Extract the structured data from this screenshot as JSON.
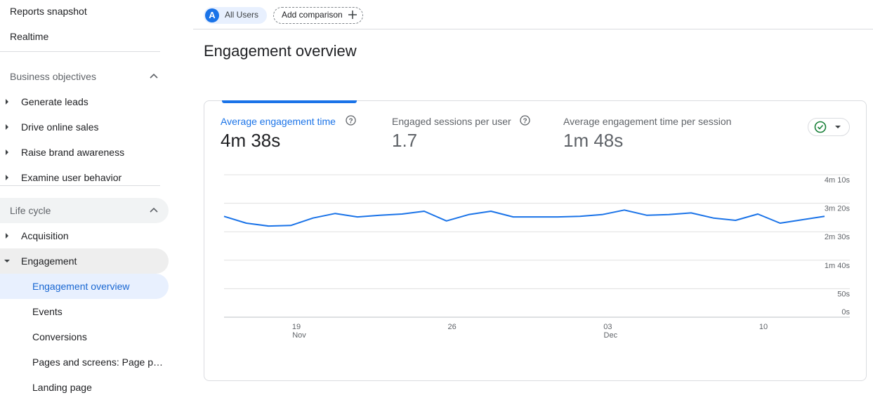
{
  "sidebar": {
    "items": [
      "Reports snapshot",
      "Realtime"
    ],
    "sections": [
      {
        "title": "Business objectives",
        "items": [
          "Generate leads",
          "Drive online sales",
          "Raise brand awareness",
          "Examine user behavior"
        ]
      },
      {
        "title": "Life cycle",
        "items": [
          "Acquisition",
          "Engagement"
        ],
        "subitems": [
          "Engagement overview",
          "Events",
          "Conversions",
          "Pages and screens: Page p…",
          "Landing page"
        ]
      }
    ]
  },
  "topbar": {
    "segment_badge": "A",
    "segment": "All Users",
    "add_comparison": "Add comparison"
  },
  "page_title": "Engagement overview",
  "metrics": [
    {
      "label": "Average engagement time",
      "value": "4m 38s"
    },
    {
      "label": "Engaged sessions per user",
      "value": "1.7"
    },
    {
      "label": "Average engagement time per session",
      "value": "1m 48s"
    }
  ],
  "chart_data": {
    "type": "line",
    "color": "#1a73e8",
    "categories": [
      null,
      null,
      null,
      "19",
      null,
      null,
      null,
      null,
      null,
      null,
      "26",
      null,
      null,
      null,
      null,
      null,
      null,
      "03",
      null,
      null,
      null,
      null,
      null,
      null,
      "10",
      null,
      null,
      null
    ],
    "category_months": [
      null,
      null,
      null,
      "Nov",
      null,
      null,
      null,
      null,
      null,
      null,
      null,
      null,
      null,
      null,
      null,
      null,
      null,
      "Dec",
      null,
      null,
      null,
      null,
      null,
      null,
      null,
      null,
      null,
      null
    ],
    "values": [
      177,
      165,
      160,
      161,
      174,
      182,
      176,
      179,
      181,
      186,
      169,
      180,
      186,
      176,
      176,
      176,
      177,
      180,
      188,
      179,
      180,
      183,
      174,
      170,
      181,
      165,
      171,
      177
    ],
    "ylim": [
      0,
      250
    ],
    "yticks": [
      {
        "value": 0,
        "label": "0s"
      },
      {
        "value": 50,
        "label": "50s"
      },
      {
        "value": 100,
        "label": "1m 40s"
      },
      {
        "value": 150,
        "label": "2m 30s"
      },
      {
        "value": 200,
        "label": "3m 20s"
      },
      {
        "value": 250,
        "label": "4m 10s"
      }
    ],
    "grid": true
  }
}
